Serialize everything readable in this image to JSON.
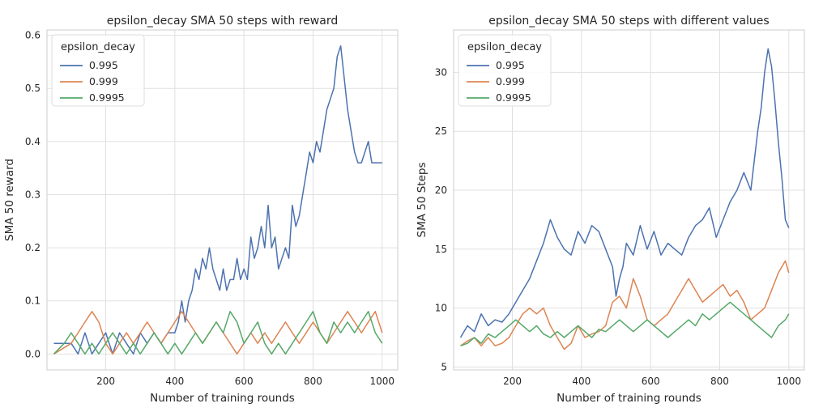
{
  "colors": {
    "blue": "#4c72b0",
    "orange": "#dd8452",
    "green": "#55a868",
    "grid": "#e0e0e0",
    "axes_bg": "#ffffff"
  },
  "chart_data": [
    {
      "type": "line",
      "title": "epsilon_decay SMA 50 steps with reward",
      "xlabel": "Number of training rounds",
      "ylabel": "SMA 50 reward",
      "xlim": [
        30,
        1045
      ],
      "ylim": [
        -0.03,
        0.61
      ],
      "xticks": [
        200,
        400,
        600,
        800,
        1000
      ],
      "yticks": [
        0.0,
        0.1,
        0.2,
        0.3,
        0.4,
        0.5,
        0.6
      ],
      "ytick_labels": [
        "0.0",
        "0.1",
        "0.2",
        "0.3",
        "0.4",
        "0.5",
        "0.6"
      ],
      "grid": true,
      "legend": {
        "title": "epsilon_decay",
        "placement": "top-left"
      },
      "series": [
        {
          "name": "0.995",
          "color": "#4c72b0",
          "x": [
            50,
            100,
            120,
            140,
            160,
            180,
            200,
            220,
            240,
            260,
            280,
            300,
            320,
            340,
            360,
            380,
            400,
            410,
            420,
            430,
            440,
            450,
            460,
            470,
            480,
            490,
            500,
            510,
            520,
            530,
            540,
            550,
            560,
            570,
            580,
            590,
            600,
            610,
            620,
            630,
            640,
            650,
            660,
            670,
            680,
            690,
            700,
            710,
            720,
            730,
            740,
            750,
            760,
            770,
            780,
            790,
            800,
            810,
            820,
            830,
            840,
            850,
            860,
            870,
            880,
            890,
            900,
            910,
            920,
            930,
            940,
            950,
            960,
            970,
            980,
            990,
            1000
          ],
          "y": [
            0.02,
            0.02,
            0.0,
            0.04,
            0.0,
            0.02,
            0.04,
            0.0,
            0.04,
            0.02,
            0.0,
            0.04,
            0.02,
            0.04,
            0.02,
            0.04,
            0.04,
            0.06,
            0.1,
            0.06,
            0.1,
            0.12,
            0.16,
            0.14,
            0.18,
            0.16,
            0.2,
            0.16,
            0.14,
            0.12,
            0.16,
            0.12,
            0.14,
            0.14,
            0.18,
            0.14,
            0.16,
            0.14,
            0.22,
            0.18,
            0.2,
            0.24,
            0.2,
            0.28,
            0.2,
            0.22,
            0.16,
            0.18,
            0.2,
            0.18,
            0.28,
            0.24,
            0.26,
            0.3,
            0.34,
            0.38,
            0.36,
            0.4,
            0.38,
            0.42,
            0.46,
            0.48,
            0.5,
            0.56,
            0.58,
            0.52,
            0.46,
            0.42,
            0.38,
            0.36,
            0.36,
            0.38,
            0.4,
            0.36,
            0.36,
            0.36,
            0.36
          ]
        },
        {
          "name": "0.999",
          "color": "#dd8452",
          "x": [
            50,
            100,
            120,
            140,
            160,
            180,
            200,
            220,
            240,
            260,
            280,
            300,
            320,
            340,
            360,
            380,
            400,
            420,
            440,
            460,
            480,
            500,
            520,
            540,
            560,
            580,
            600,
            620,
            640,
            660,
            680,
            700,
            720,
            740,
            760,
            780,
            800,
            820,
            840,
            860,
            880,
            900,
            920,
            940,
            960,
            980,
            1000
          ],
          "y": [
            0.0,
            0.02,
            0.04,
            0.06,
            0.08,
            0.06,
            0.02,
            0.0,
            0.02,
            0.04,
            0.02,
            0.04,
            0.06,
            0.04,
            0.02,
            0.04,
            0.06,
            0.08,
            0.06,
            0.04,
            0.02,
            0.04,
            0.06,
            0.04,
            0.02,
            0.0,
            0.02,
            0.04,
            0.02,
            0.04,
            0.02,
            0.04,
            0.06,
            0.04,
            0.02,
            0.04,
            0.06,
            0.04,
            0.02,
            0.04,
            0.06,
            0.08,
            0.06,
            0.04,
            0.06,
            0.08,
            0.04
          ]
        },
        {
          "name": "0.9995",
          "color": "#55a868",
          "x": [
            50,
            80,
            100,
            120,
            140,
            160,
            180,
            200,
            220,
            240,
            260,
            280,
            300,
            320,
            340,
            360,
            380,
            400,
            420,
            440,
            460,
            480,
            500,
            520,
            540,
            560,
            580,
            600,
            620,
            640,
            660,
            680,
            700,
            720,
            740,
            760,
            780,
            800,
            820,
            840,
            860,
            880,
            900,
            920,
            940,
            960,
            980,
            1000
          ],
          "y": [
            0.0,
            0.02,
            0.04,
            0.02,
            0.0,
            0.02,
            0.0,
            0.02,
            0.04,
            0.02,
            0.0,
            0.02,
            0.0,
            0.02,
            0.04,
            0.02,
            0.0,
            0.02,
            0.0,
            0.02,
            0.04,
            0.02,
            0.04,
            0.06,
            0.04,
            0.08,
            0.06,
            0.02,
            0.04,
            0.06,
            0.02,
            0.0,
            0.02,
            0.0,
            0.02,
            0.04,
            0.06,
            0.08,
            0.04,
            0.02,
            0.06,
            0.04,
            0.06,
            0.04,
            0.06,
            0.08,
            0.04,
            0.02
          ]
        }
      ]
    },
    {
      "type": "line",
      "title": "epsilon_decay SMA 50 steps with different values",
      "xlabel": "Number of training rounds",
      "ylabel": "SMA 50 Steps",
      "xlim": [
        30,
        1045
      ],
      "ylim": [
        4.75,
        33.6
      ],
      "xticks": [
        200,
        400,
        600,
        800,
        1000
      ],
      "yticks": [
        5,
        10,
        15,
        20,
        25,
        30
      ],
      "ytick_labels": [
        "5",
        "10",
        "15",
        "20",
        "25",
        "30"
      ],
      "grid": true,
      "legend": {
        "title": "epsilon_decay",
        "placement": "top-left"
      },
      "series": [
        {
          "name": "0.995",
          "color": "#4c72b0",
          "x": [
            50,
            70,
            90,
            110,
            130,
            150,
            170,
            190,
            210,
            230,
            250,
            270,
            290,
            310,
            330,
            350,
            370,
            390,
            410,
            430,
            450,
            470,
            490,
            500,
            510,
            520,
            530,
            550,
            570,
            590,
            610,
            630,
            650,
            670,
            690,
            710,
            730,
            750,
            770,
            790,
            810,
            830,
            850,
            870,
            890,
            910,
            920,
            930,
            940,
            950,
            960,
            970,
            980,
            990,
            1000
          ],
          "y": [
            7.5,
            8.5,
            8.0,
            9.5,
            8.5,
            9.0,
            8.8,
            9.5,
            10.5,
            11.5,
            12.5,
            14.0,
            15.5,
            17.5,
            16.0,
            15.0,
            14.5,
            16.5,
            15.5,
            17.0,
            16.5,
            15.0,
            13.5,
            11.0,
            12.5,
            13.5,
            15.5,
            14.5,
            17.0,
            15.0,
            16.5,
            14.5,
            15.5,
            15.0,
            14.5,
            16.0,
            17.0,
            17.5,
            18.5,
            16.0,
            17.5,
            19.0,
            20.0,
            21.5,
            20.0,
            25.0,
            27.0,
            30.0,
            32.0,
            30.5,
            27.5,
            24.0,
            21.0,
            17.5,
            16.8
          ]
        },
        {
          "name": "0.999",
          "color": "#dd8452",
          "x": [
            50,
            70,
            90,
            110,
            130,
            150,
            170,
            190,
            210,
            230,
            250,
            270,
            290,
            310,
            330,
            350,
            370,
            390,
            410,
            430,
            450,
            470,
            490,
            510,
            530,
            550,
            570,
            590,
            610,
            630,
            650,
            670,
            690,
            710,
            730,
            750,
            770,
            790,
            810,
            830,
            850,
            870,
            890,
            910,
            930,
            950,
            970,
            990,
            1000
          ],
          "y": [
            6.8,
            7.2,
            7.5,
            6.8,
            7.5,
            6.8,
            7.0,
            7.5,
            8.5,
            9.5,
            10.0,
            9.5,
            10.0,
            8.5,
            7.5,
            6.5,
            7.0,
            8.5,
            7.5,
            7.8,
            8.0,
            8.5,
            10.5,
            11.0,
            10.0,
            12.5,
            11.0,
            9.0,
            8.5,
            9.0,
            9.5,
            10.5,
            11.5,
            12.5,
            11.5,
            10.5,
            11.0,
            11.5,
            12.0,
            11.0,
            11.5,
            10.5,
            9.0,
            9.5,
            10.0,
            11.5,
            13.0,
            14.0,
            13.0
          ]
        },
        {
          "name": "0.9995",
          "color": "#55a868",
          "x": [
            50,
            70,
            90,
            110,
            130,
            150,
            170,
            190,
            210,
            230,
            250,
            270,
            290,
            310,
            330,
            350,
            370,
            390,
            410,
            430,
            450,
            470,
            490,
            510,
            530,
            550,
            570,
            590,
            610,
            630,
            650,
            670,
            690,
            710,
            730,
            750,
            770,
            790,
            810,
            830,
            850,
            870,
            890,
            910,
            930,
            950,
            970,
            990,
            1000
          ],
          "y": [
            6.8,
            7.0,
            7.5,
            7.0,
            7.8,
            7.5,
            8.0,
            8.5,
            9.0,
            8.5,
            8.0,
            8.5,
            7.8,
            7.5,
            8.0,
            7.5,
            8.0,
            8.5,
            8.0,
            7.5,
            8.2,
            8.0,
            8.5,
            9.0,
            8.5,
            8.0,
            8.5,
            9.0,
            8.5,
            8.0,
            7.5,
            8.0,
            8.5,
            9.0,
            8.5,
            9.5,
            9.0,
            9.5,
            10.0,
            10.5,
            10.0,
            9.5,
            9.0,
            8.5,
            8.0,
            7.5,
            8.5,
            9.0,
            9.5
          ]
        }
      ]
    }
  ]
}
